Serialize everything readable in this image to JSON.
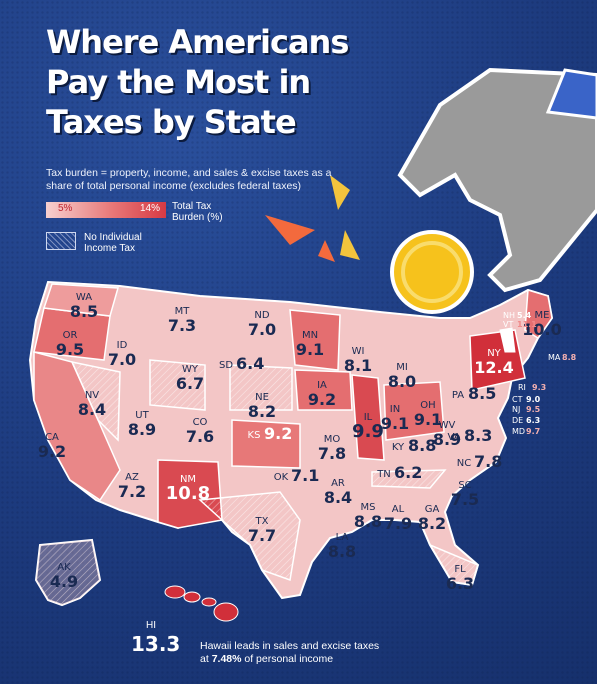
{
  "title_lines": [
    "Where Americans",
    "Pay the Most in",
    "Taxes by State"
  ],
  "subtitle": "Tax burden = property, income, and sales & excise taxes as a share of total personal income (excludes federal taxes)",
  "legend": {
    "min": "5%",
    "max": "14%",
    "title": "Total Tax Burden (%)",
    "hatch_label": "No Individual Income Tax",
    "color_min": "#f9dcdc",
    "color_max": "#d12f3a"
  },
  "states": [
    {
      "abbr": "WA",
      "value": "8.5"
    },
    {
      "abbr": "OR",
      "value": "9.5"
    },
    {
      "abbr": "CA",
      "value": "9.2"
    },
    {
      "abbr": "ID",
      "value": "7.0"
    },
    {
      "abbr": "NV",
      "value": "8.4"
    },
    {
      "abbr": "MT",
      "value": "7.3"
    },
    {
      "abbr": "WY",
      "value": "6.7"
    },
    {
      "abbr": "UT",
      "value": "8.9"
    },
    {
      "abbr": "AZ",
      "value": "7.2"
    },
    {
      "abbr": "CO",
      "value": "7.6"
    },
    {
      "abbr": "NM",
      "value": "10.8"
    },
    {
      "abbr": "ND",
      "value": "7.0"
    },
    {
      "abbr": "SD",
      "value": "6.4"
    },
    {
      "abbr": "NE",
      "value": "8.2"
    },
    {
      "abbr": "KS",
      "value": "9.2"
    },
    {
      "abbr": "OK",
      "value": "7.1"
    },
    {
      "abbr": "TX",
      "value": "7.7"
    },
    {
      "abbr": "MN",
      "value": "9.1"
    },
    {
      "abbr": "IA",
      "value": "9.2"
    },
    {
      "abbr": "MO",
      "value": "7.8"
    },
    {
      "abbr": "AR",
      "value": "8.4"
    },
    {
      "abbr": "LA",
      "value": "8.8"
    },
    {
      "abbr": "WI",
      "value": "8.1"
    },
    {
      "abbr": "IL",
      "value": "9.9"
    },
    {
      "abbr": "MI",
      "value": "8.0"
    },
    {
      "abbr": "IN",
      "value": "9.1"
    },
    {
      "abbr": "OH",
      "value": "9.1"
    },
    {
      "abbr": "KY",
      "value": "8.8"
    },
    {
      "abbr": "TN",
      "value": "6.2"
    },
    {
      "abbr": "MS",
      "value": "8.8"
    },
    {
      "abbr": "AL",
      "value": "7.9"
    },
    {
      "abbr": "GA",
      "value": "8.2"
    },
    {
      "abbr": "FL",
      "value": "6.3"
    },
    {
      "abbr": "SC",
      "value": "7.5"
    },
    {
      "abbr": "NC",
      "value": "7.8"
    },
    {
      "abbr": "VA",
      "value": "8.3"
    },
    {
      "abbr": "WV",
      "value": "8.9"
    },
    {
      "abbr": "PA",
      "value": "8.5"
    },
    {
      "abbr": "NY",
      "value": "12.4"
    },
    {
      "abbr": "ME",
      "value": "10.0"
    },
    {
      "abbr": "AK",
      "value": "4.9"
    }
  ],
  "small_states": [
    {
      "abbr": "NH",
      "value": "5.4"
    },
    {
      "abbr": "VT",
      "value": "11.1"
    },
    {
      "abbr": "MA",
      "value": "8.8"
    },
    {
      "abbr": "RI",
      "value": "9.3"
    },
    {
      "abbr": "CT",
      "value": "9.0"
    },
    {
      "abbr": "NJ",
      "value": "9.5"
    },
    {
      "abbr": "DE",
      "value": "6.3"
    },
    {
      "abbr": "MD",
      "value": "9.7"
    }
  ],
  "hawaii": {
    "abbr": "HI",
    "value": "13.3"
  },
  "callout": {
    "before": "Hawaii leads in sales and excise taxes at ",
    "highlight": "7.48%",
    "after": " of personal income"
  }
}
